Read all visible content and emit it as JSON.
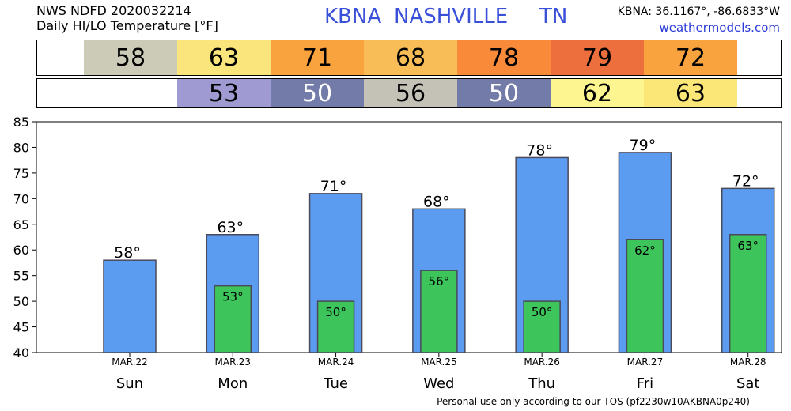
{
  "header": {
    "line1": "NWS NDFD 2020032214",
    "line2": "Daily HI/LO Temperature [°F]",
    "station": "KBNA",
    "city": "NASHVILLE",
    "state": "TN",
    "coords": "KBNA: 36.1167°, -86.6833°W",
    "site": "weathermodels.com"
  },
  "hi_strip": [
    {
      "text": "58",
      "color": "#cccbb8"
    },
    {
      "text": "63",
      "color": "#f9e57b"
    },
    {
      "text": "71",
      "color": "#f9a33e"
    },
    {
      "text": "68",
      "color": "#f8bd56"
    },
    {
      "text": "78",
      "color": "#f88a3a"
    },
    {
      "text": "79",
      "color": "#ec6f3d"
    },
    {
      "text": "72",
      "color": "#f9a33e"
    }
  ],
  "lo_strip": [
    {
      "text": "53",
      "color": "#9f9ad1"
    },
    {
      "text": "50",
      "color": "#737ba9"
    },
    {
      "text": "56",
      "color": "#c4c2b6"
    },
    {
      "text": "50",
      "color": "#737ba9"
    },
    {
      "text": "62",
      "color": "#fcf590"
    },
    {
      "text": "63",
      "color": "#fbe678"
    }
  ],
  "chart_data": {
    "type": "bar",
    "categories": [
      "Sun",
      "Mon",
      "Tue",
      "Wed",
      "Thu",
      "Fri",
      "Sat"
    ],
    "dates": [
      "MAR.22",
      "MAR.23",
      "MAR.24",
      "MAR.25",
      "MAR.26",
      "MAR.27",
      "MAR.28"
    ],
    "series": [
      {
        "values": [
          58,
          63,
          71,
          68,
          78,
          79,
          72
        ],
        "color": "#5b9cf0"
      },
      {
        "values": [
          null,
          53,
          50,
          56,
          50,
          62,
          63
        ],
        "color": "#3dc45b"
      }
    ],
    "ylim": [
      40,
      85
    ],
    "yticks": [
      40,
      45,
      50,
      55,
      60,
      65,
      70,
      75,
      80,
      85
    ],
    "grid": false
  },
  "footer": "Personal use only according to our TOS (pf2230w10AKBNA0p240)"
}
